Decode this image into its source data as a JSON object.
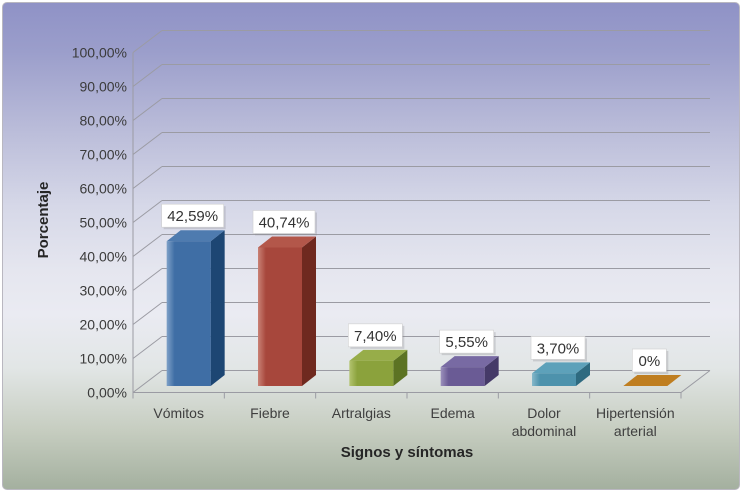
{
  "chart_data": {
    "type": "bar",
    "style": "3d",
    "title": "",
    "xlabel": "Signos y síntomas",
    "ylabel": "Porcentaje",
    "categories": [
      "Vómitos",
      "Fiebre",
      "Artralgias",
      "Edema",
      "Dolor abdominal",
      "Hipertensión arterial"
    ],
    "category_lines": [
      [
        "Vómitos"
      ],
      [
        "Fiebre"
      ],
      [
        "Artralgias"
      ],
      [
        "Edema"
      ],
      [
        "Dolor",
        "abdominal"
      ],
      [
        "Hipertensión",
        "arterial"
      ]
    ],
    "values": [
      42.59,
      40.74,
      7.4,
      5.55,
      3.7,
      0
    ],
    "data_labels": [
      "42,59%",
      "40,74%",
      "7,40%",
      "5,55%",
      "3,70%",
      "0%"
    ],
    "ylim": [
      0,
      100
    ],
    "y_tick_step": 10,
    "y_ticks": [
      "0,00%",
      "10,00%",
      "20,00%",
      "30,00%",
      "40,00%",
      "50,00%",
      "60,00%",
      "70,00%",
      "80,00%",
      "90,00%",
      "100,00%"
    ],
    "grid": true,
    "legend": false,
    "bar_colors": [
      {
        "edge": "#7FA1C8",
        "front": "#3F6EA5",
        "top": "#4E7BAF",
        "side": "#1D4673"
      },
      {
        "edge": "#C98175",
        "front": "#A7473C",
        "top": "#B3574A",
        "side": "#6F291F"
      },
      {
        "edge": "#B3C470",
        "front": "#8BA23C",
        "top": "#97AD49",
        "side": "#5C7323"
      },
      {
        "edge": "#9C91BC",
        "front": "#6A5B95",
        "top": "#786AA3",
        "side": "#453A68"
      },
      {
        "edge": "#86B8CA",
        "front": "#4D92AC",
        "top": "#5DA1BA",
        "side": "#2E6A80"
      },
      {
        "edge": "#E0AC5C",
        "front": "#BF7E20",
        "top": "#C98A28",
        "side": "#8A5912"
      }
    ],
    "colors": {
      "gridline": "#9B9BA3",
      "axis_line": "#9B9BA3",
      "tick_text": "#3B3B3B",
      "category_text": "#3F3F3F",
      "data_label_text": "#333333",
      "data_label_box": "#FFFFFF",
      "data_label_border": "#CFCFCF"
    }
  }
}
